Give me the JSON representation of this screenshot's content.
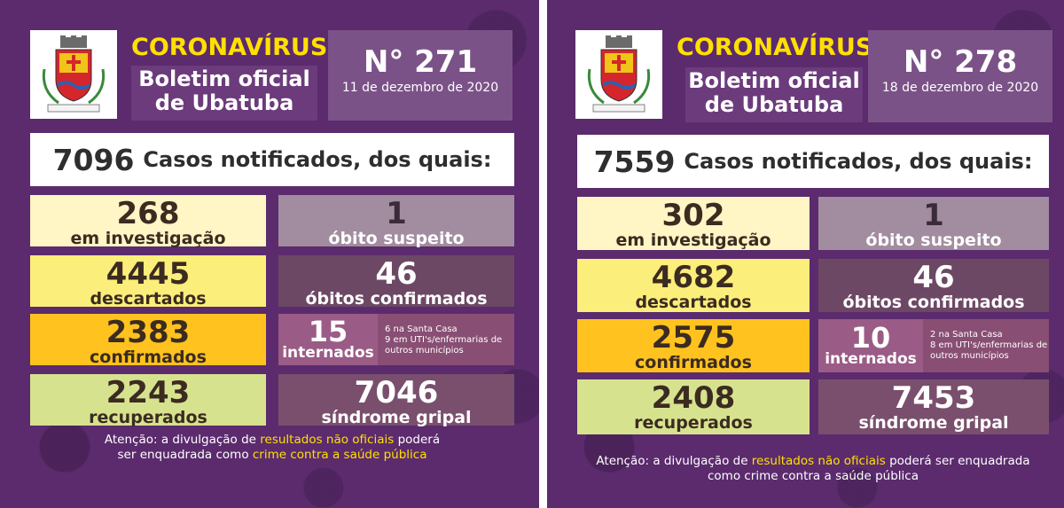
{
  "colors": {
    "background": "#5b2b6e",
    "accent_yellow": "#ffe000",
    "card_investigacao": "#fff5c5",
    "card_descartados": "#fcee7a",
    "card_confirmados": "#ffc21e",
    "card_recuperados": "#d7e28f",
    "card_obito_suspeito": "#a28c9f",
    "card_obitos_confirmados": "#6d4865",
    "card_internados": "#884e73",
    "card_sindrome": "#7a4f6d"
  },
  "bulletins": [
    {
      "coat_of_arms_icon": "ubatuba-coat-of-arms-icon",
      "title": "CORONAVÍRUS",
      "subtitle_line1": "Boletim oficial",
      "subtitle_line2": "de Ubatuba",
      "number": "N° 271",
      "date": "11 de dezembro de 2020",
      "notified_total": "7096",
      "notified_text": "Casos notificados, dos quais:",
      "em_investigacao": {
        "value": "268",
        "label": "em investigação"
      },
      "descartados": {
        "value": "4445",
        "label": "descartados"
      },
      "confirmados": {
        "value": "2383",
        "label": "confirmados"
      },
      "recuperados": {
        "value": "2243",
        "label": "recuperados"
      },
      "obito_suspeito": {
        "value": "1",
        "label": "óbito suspeito"
      },
      "obitos_confirmados": {
        "value": "46",
        "label": "óbitos confirmados"
      },
      "internados": {
        "value": "15",
        "label": "internados",
        "detail_line1": "6 na Santa Casa",
        "detail_line2": "9 em UTI's/enfermarias de",
        "detail_line3": "outros municípios"
      },
      "sindrome_gripal": {
        "value": "7046",
        "label": "síndrome gripal"
      },
      "footer": {
        "part1": "Atenção: a divulgação de ",
        "highlight1": "resultados não oficiais",
        "part2": " poderá",
        "part3": "ser enquadrada como ",
        "highlight2": "crime contra a saúde pública",
        "part4": ""
      }
    },
    {
      "coat_of_arms_icon": "ubatuba-coat-of-arms-icon",
      "title": "CORONAVÍRUS",
      "subtitle_line1": "Boletim oficial",
      "subtitle_line2": "de Ubatuba",
      "number": "N° 278",
      "date": "18 de dezembro de 2020",
      "notified_total": "7559",
      "notified_text": "Casos notificados, dos quais:",
      "em_investigacao": {
        "value": "302",
        "label": "em investigação"
      },
      "descartados": {
        "value": "4682",
        "label": "descartados"
      },
      "confirmados": {
        "value": "2575",
        "label": "confirmados"
      },
      "recuperados": {
        "value": "2408",
        "label": "recuperados"
      },
      "obito_suspeito": {
        "value": "1",
        "label": "óbito suspeito"
      },
      "obitos_confirmados": {
        "value": "46",
        "label": "óbitos confirmados"
      },
      "internados": {
        "value": "10",
        "label": "internados",
        "detail_line1": "2 na Santa Casa",
        "detail_line2": "8 em UTI's/enfermarias de",
        "detail_line3": "outros municípios"
      },
      "sindrome_gripal": {
        "value": "7453",
        "label": "síndrome gripal"
      },
      "footer": {
        "part1": "Atenção: a divulgação de ",
        "highlight1": "resultados não oficiais",
        "part2": " poderá ser enquadrada",
        "part3": "como crime contra a saúde pública",
        "highlight2": "",
        "part4": ""
      }
    }
  ]
}
